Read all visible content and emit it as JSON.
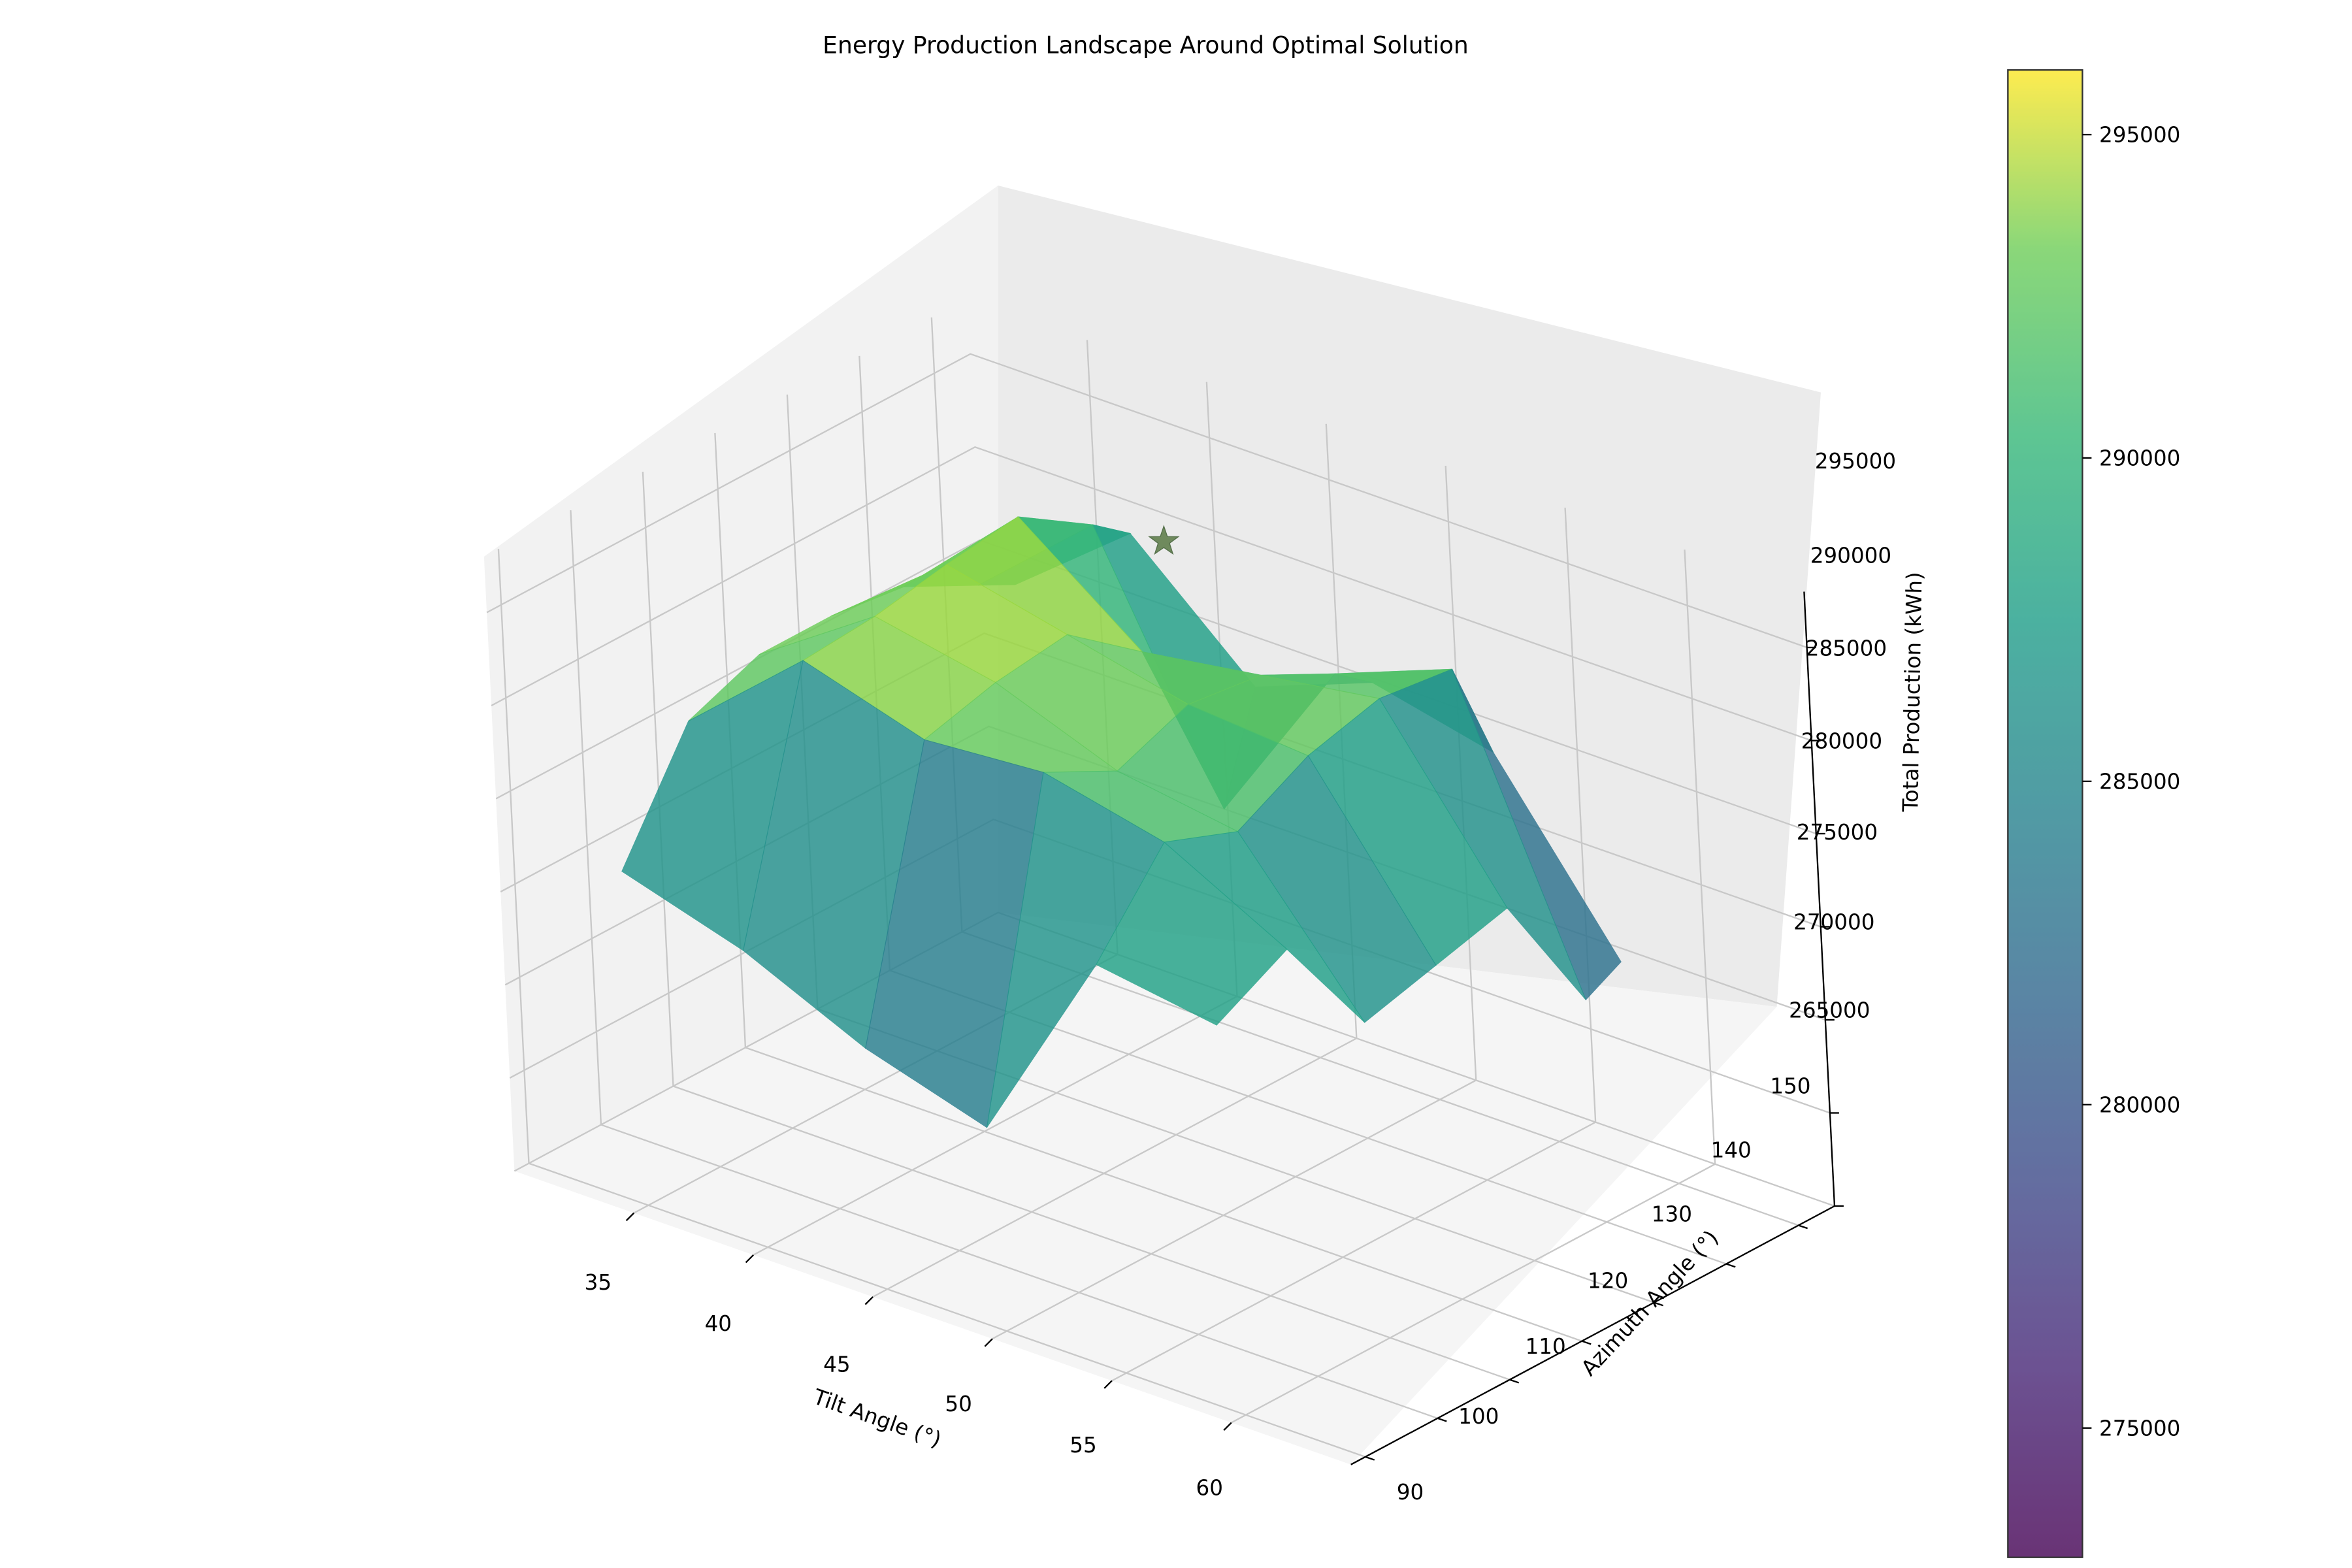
{
  "chart_data": {
    "type": "surface3d",
    "title": "Energy Production Landscape Around Optimal Solution",
    "xlabel": "Tilt Angle (°)",
    "ylabel": "Azimuth Angle (°)",
    "zlabel": "Total Production (kWh)",
    "x_ticks": [
      35,
      40,
      45,
      50,
      55,
      60
    ],
    "y_ticks": [
      90,
      100,
      110,
      120,
      130,
      140,
      150
    ],
    "z_ticks": [
      265000,
      270000,
      275000,
      280000,
      285000,
      290000,
      295000
    ],
    "xlim": [
      30,
      65
    ],
    "ylim": [
      88,
      155
    ],
    "zlim": [
      265000,
      298000
    ],
    "colormap": "viridis",
    "colorbar": {
      "ticks": [
        275000,
        280000,
        285000,
        290000,
        295000
      ],
      "range": [
        273000,
        296000
      ]
    },
    "grid": true,
    "optimal_point": {
      "tilt": 45,
      "azimuth": 150,
      "production": 292000,
      "marker": "star"
    },
    "surface": {
      "tilt": [
        33,
        38,
        43,
        48,
        53,
        58
      ],
      "azimuth": [
        95,
        105,
        115,
        125,
        135,
        145,
        150
      ],
      "production": [
        [
          281000,
          287000,
          288500,
          288500,
          288000,
          286000,
          285000
        ],
        [
          279000,
          292500,
          292800,
          293500,
          294000,
          291500,
          290000
        ],
        [
          276000,
          290500,
          291500,
          292000,
          289000,
          278500,
          284000
        ],
        [
          274000,
          291000,
          289000,
          290500,
          290000,
          288000,
          286500
        ],
        [
          285000,
          289500,
          288000,
          290000,
          291000,
          290500,
          285000
        ],
        [
          284000,
          286000,
          280000,
          281000,
          282000,
          275000,
          276000
        ]
      ]
    }
  }
}
